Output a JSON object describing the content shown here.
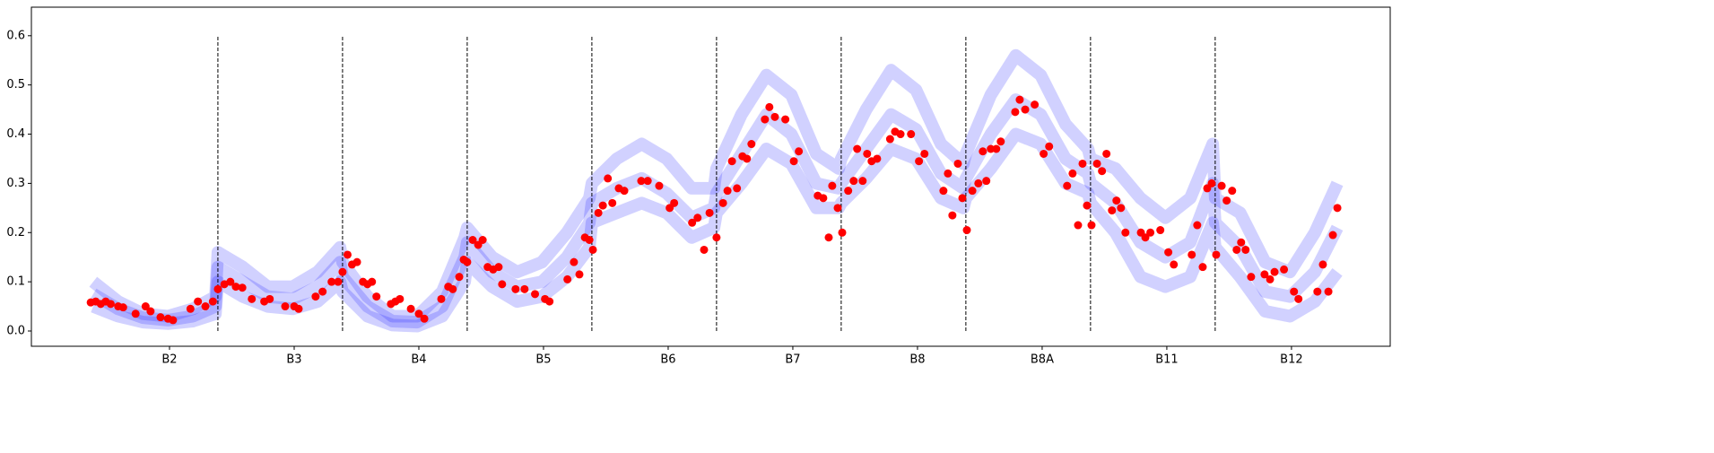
{
  "chart_data": {
    "type": "line",
    "xlim": [
      -12.4,
      260.1
    ],
    "ylim": [
      -0.031,
      0.658
    ],
    "yticks": [
      {
        "value": 0,
        "label": "0.0"
      },
      0.1,
      0.2,
      0.3,
      0.4,
      0.5,
      0.6
    ],
    "xticks": [
      {
        "value": 15.3,
        "label": "B2"
      },
      {
        "value": 40.3,
        "label": "B3"
      },
      {
        "value": 65.3,
        "label": "B4"
      },
      {
        "value": 90.3,
        "label": "B5"
      },
      {
        "value": 115.3,
        "label": "B6"
      },
      {
        "value": 140.3,
        "label": "B7"
      },
      {
        "value": 165.3,
        "label": "B8"
      },
      {
        "value": 190.3,
        "label": "B8A"
      },
      {
        "value": 215.3,
        "label": "B11"
      },
      {
        "value": 240.3,
        "label": "B12"
      }
    ],
    "vlines": {
      "x": [
        25,
        50,
        75,
        100,
        125,
        150,
        175,
        200,
        225
      ],
      "ymin": 0,
      "ymax": 0.6,
      "color": "#000000"
    },
    "x": [
      0,
      5,
      10,
      15,
      20,
      24.5,
      25,
      30,
      35,
      40,
      45,
      49.5,
      50,
      55,
      60,
      65,
      70,
      74.5,
      75,
      80,
      85,
      90,
      95,
      99.5,
      100,
      105,
      110,
      115,
      120,
      124.5,
      125,
      130,
      135,
      140,
      145,
      149.5,
      150,
      155,
      160,
      165,
      170,
      174.5,
      175,
      180,
      185,
      190,
      195,
      199.5,
      200,
      205,
      210,
      215,
      220,
      224.5,
      225,
      230,
      235,
      240,
      245,
      249.5
    ],
    "series": [
      {
        "kind": "line",
        "color": "#0000ff",
        "values": [
          0.1,
          0.06,
          0.035,
          0.03,
          0.045,
          0.07,
          0.16,
          0.13,
          0.09,
          0.09,
          0.12,
          0.17,
          0.14,
          0.07,
          0.03,
          0.03,
          0.08,
          0.19,
          0.21,
          0.15,
          0.12,
          0.14,
          0.2,
          0.27,
          0.3,
          0.35,
          0.38,
          0.35,
          0.29,
          0.29,
          0.33,
          0.44,
          0.52,
          0.48,
          0.36,
          0.33,
          0.35,
          0.45,
          0.53,
          0.49,
          0.38,
          0.34,
          0.36,
          0.48,
          0.56,
          0.52,
          0.42,
          0.37,
          0.35,
          0.33,
          0.27,
          0.23,
          0.27,
          0.38,
          0.27,
          0.24,
          0.14,
          0.12,
          0.2,
          0.3
        ]
      },
      {
        "kind": "line",
        "color": "#0000ff",
        "values": [
          0.075,
          0.045,
          0.027,
          0.022,
          0.03,
          0.05,
          0.13,
          0.1,
          0.07,
          0.065,
          0.09,
          0.14,
          0.11,
          0.05,
          0.02,
          0.018,
          0.05,
          0.15,
          0.18,
          0.12,
          0.09,
          0.1,
          0.15,
          0.22,
          0.26,
          0.29,
          0.31,
          0.28,
          0.23,
          0.25,
          0.28,
          0.36,
          0.44,
          0.4,
          0.3,
          0.29,
          0.3,
          0.37,
          0.44,
          0.41,
          0.32,
          0.29,
          0.31,
          0.4,
          0.47,
          0.44,
          0.35,
          0.32,
          0.3,
          0.26,
          0.18,
          0.15,
          0.18,
          0.3,
          0.22,
          0.17,
          0.08,
          0.07,
          0.12,
          0.21
        ]
      },
      {
        "kind": "line",
        "color": "#0000ff",
        "values": [
          0.05,
          0.03,
          0.018,
          0.015,
          0.02,
          0.035,
          0.1,
          0.07,
          0.05,
          0.045,
          0.06,
          0.1,
          0.08,
          0.03,
          0.012,
          0.01,
          0.03,
          0.1,
          0.14,
          0.09,
          0.06,
          0.07,
          0.11,
          0.17,
          0.22,
          0.24,
          0.26,
          0.24,
          0.19,
          0.21,
          0.24,
          0.3,
          0.37,
          0.34,
          0.25,
          0.25,
          0.26,
          0.31,
          0.37,
          0.35,
          0.27,
          0.25,
          0.27,
          0.33,
          0.4,
          0.38,
          0.3,
          0.28,
          0.26,
          0.2,
          0.11,
          0.09,
          0.11,
          0.22,
          0.17,
          0.11,
          0.04,
          0.03,
          0.06,
          0.12
        ]
      },
      {
        "kind": "scatter",
        "color": "#ff0000",
        "x": [
          -0.5,
          0.5,
          1.5,
          2.5,
          3.5,
          5,
          6,
          8.5,
          10.5,
          11.5,
          13.5,
          15,
          16,
          19.5,
          21,
          22.5,
          24,
          25,
          26.3,
          27.5,
          28.6,
          29.9,
          31.8,
          34.3,
          35.4,
          38.5,
          40.3,
          41.2,
          44.6,
          46,
          47.8,
          49.1,
          50,
          51,
          51.9,
          52.9,
          54.1,
          55,
          55.9,
          56.8,
          59.7,
          60.6,
          61.5,
          63.7,
          65.3,
          66.4,
          69.8,
          71.2,
          72.1,
          73.4,
          74.3,
          75,
          76.1,
          77.2,
          78.1,
          79.1,
          80.2,
          81.3,
          82,
          84.7,
          86.5,
          88.6,
          90.6,
          91.5,
          95.1,
          96.4,
          97.5,
          98.6,
          99.5,
          100.2,
          101.3,
          102.2,
          103.2,
          104.1,
          105.4,
          106.5,
          109.9,
          111.2,
          113.5,
          115.6,
          116.5,
          120.1,
          121.2,
          122.5,
          123.6,
          125,
          126.3,
          127.2,
          128.1,
          129.1,
          130.2,
          131.1,
          132,
          134.7,
          135.6,
          136.7,
          138.8,
          140.5,
          141.5,
          145.3,
          146.4,
          147.5,
          148.2,
          149.3,
          150.2,
          151.4,
          152.5,
          153.2,
          154.3,
          155.2,
          156.1,
          157.2,
          159.8,
          160.8,
          161.9,
          164,
          165.6,
          166.7,
          170.5,
          171.4,
          172.3,
          173.4,
          174.3,
          175.2,
          176.3,
          177.5,
          178.4,
          179.1,
          180,
          181.1,
          182,
          184.9,
          185.8,
          186.9,
          188.8,
          190.6,
          191.7,
          195.3,
          196.4,
          197.5,
          198.4,
          199.3,
          200.2,
          201.3,
          202.3,
          203.2,
          204.3,
          205.2,
          206.1,
          207,
          210.1,
          211,
          212,
          214,
          215.6,
          216.7,
          220.3,
          221.4,
          222.5,
          223.4,
          224.3,
          225.2,
          226.3,
          227.3,
          228.4,
          229.3,
          230.2,
          231.1,
          232.2,
          234.9,
          236,
          236.9,
          238.8,
          240.8,
          241.7,
          245.5,
          246.6,
          247.7,
          248.6,
          249.5
        ],
        "values": [
          0.058,
          0.06,
          0.055,
          0.06,
          0.055,
          0.05,
          0.048,
          0.035,
          0.05,
          0.04,
          0.028,
          0.025,
          0.022,
          0.045,
          0.06,
          0.05,
          0.06,
          0.085,
          0.095,
          0.1,
          0.09,
          0.088,
          0.065,
          0.06,
          0.065,
          0.05,
          0.05,
          0.045,
          0.07,
          0.08,
          0.1,
          0.1,
          0.12,
          0.155,
          0.135,
          0.14,
          0.1,
          0.095,
          0.1,
          0.07,
          0.055,
          0.06,
          0.065,
          0.045,
          0.035,
          0.025,
          0.065,
          0.09,
          0.085,
          0.11,
          0.145,
          0.14,
          0.185,
          0.175,
          0.185,
          0.13,
          0.125,
          0.13,
          0.095,
          0.085,
          0.085,
          0.075,
          0.065,
          0.06,
          0.105,
          0.14,
          0.115,
          0.19,
          0.185,
          0.165,
          0.24,
          0.255,
          0.31,
          0.26,
          0.29,
          0.285,
          0.305,
          0.305,
          0.295,
          0.25,
          0.26,
          0.22,
          0.23,
          0.165,
          0.24,
          0.19,
          0.26,
          0.285,
          0.345,
          0.29,
          0.355,
          0.35,
          0.38,
          0.43,
          0.455,
          0.435,
          0.43,
          0.345,
          0.365,
          0.275,
          0.27,
          0.19,
          0.295,
          0.25,
          0.2,
          0.285,
          0.305,
          0.37,
          0.305,
          0.36,
          0.345,
          0.35,
          0.39,
          0.405,
          0.4,
          0.4,
          0.345,
          0.36,
          0.285,
          0.32,
          0.235,
          0.34,
          0.27,
          0.205,
          0.285,
          0.3,
          0.365,
          0.305,
          0.37,
          0.37,
          0.385,
          0.445,
          0.47,
          0.45,
          0.46,
          0.36,
          0.375,
          0.295,
          0.32,
          0.215,
          0.34,
          0.255,
          0.215,
          0.34,
          0.325,
          0.36,
          0.245,
          0.265,
          0.25,
          0.2,
          0.2,
          0.19,
          0.2,
          0.205,
          0.16,
          0.135,
          0.155,
          0.215,
          0.13,
          0.29,
          0.3,
          0.155,
          0.295,
          0.265,
          0.285,
          0.165,
          0.18,
          0.165,
          0.11,
          0.115,
          0.105,
          0.12,
          0.125,
          0.08,
          0.065,
          0.08,
          0.135,
          0.08,
          0.195,
          0.25
        ]
      }
    ]
  }
}
